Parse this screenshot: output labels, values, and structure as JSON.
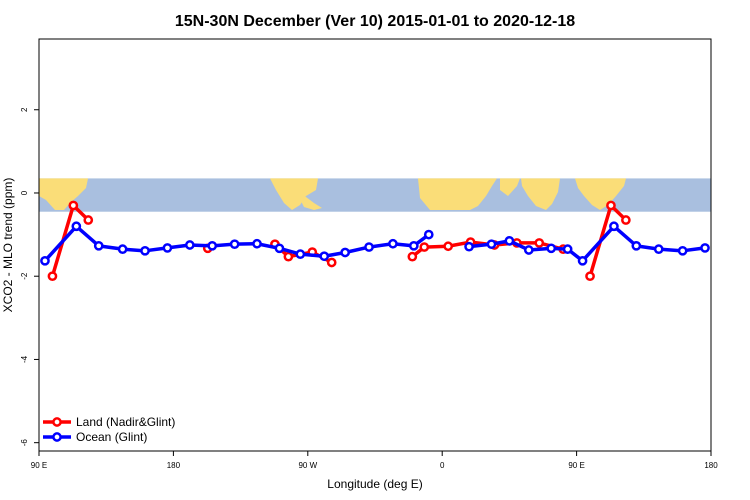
{
  "chart_data": {
    "type": "line",
    "title": "15N-30N December (Ver 10)   2015-01-01 to 2020-12-18",
    "xlabel": "Longitude (deg E)",
    "ylabel": "XCO2 - MLO trend (ppm)",
    "xlim": [
      90,
      540
    ],
    "ylim": [
      -6.2,
      3.7
    ],
    "x_ticks": [
      {
        "value": 90,
        "label": "90 E"
      },
      {
        "value": 180,
        "label": "180"
      },
      {
        "value": 270,
        "label": "90 W"
      },
      {
        "value": 360,
        "label": "0"
      },
      {
        "value": 450,
        "label": "90 E"
      },
      {
        "value": 540,
        "label": "180"
      }
    ],
    "y_ticks": [
      {
        "value": 2,
        "label": "2"
      },
      {
        "value": 0,
        "label": "0"
      },
      {
        "value": -2,
        "label": "-2"
      },
      {
        "value": -4,
        "label": "-4"
      },
      {
        "value": -6,
        "label": "-6"
      }
    ],
    "map_band": {
      "ymin": -0.45,
      "ymax": 0.35,
      "ocean_color": "#a9bfdf",
      "land_color": "#fadd78"
    },
    "legend_position": "bottom-left",
    "series": [
      {
        "name": "Land (Nadir&Glint)",
        "color": "#ff0000",
        "segments": [
          [
            [
              99,
              -2.0
            ],
            [
              113,
              -0.3
            ],
            [
              123,
              -0.65
            ]
          ],
          [
            [
              203,
              -1.33
            ]
          ],
          [
            [
              248,
              -1.23
            ],
            [
              257,
              -1.53
            ],
            [
              273,
              -1.42
            ],
            [
              286,
              -1.67
            ]
          ],
          [
            [
              340,
              -1.53
            ],
            [
              348,
              -1.3
            ],
            [
              364,
              -1.28
            ],
            [
              379,
              -1.18
            ],
            [
              395,
              -1.25
            ],
            [
              410,
              -1.2
            ],
            [
              425,
              -1.2
            ],
            [
              441,
              -1.35
            ]
          ],
          [
            [
              459,
              -2.0
            ],
            [
              473,
              -0.3
            ],
            [
              483,
              -0.65
            ]
          ]
        ]
      },
      {
        "name": "Ocean (Glint)",
        "color": "#0000ff",
        "segments": [
          [
            [
              94,
              -1.63
            ],
            [
              115,
              -0.8
            ],
            [
              130,
              -1.27
            ],
            [
              146,
              -1.35
            ],
            [
              161,
              -1.39
            ],
            [
              176,
              -1.32
            ],
            [
              191,
              -1.25
            ],
            [
              206,
              -1.27
            ],
            [
              221,
              -1.23
            ],
            [
              236,
              -1.22
            ],
            [
              251,
              -1.33
            ],
            [
              265,
              -1.47
            ],
            [
              281,
              -1.52
            ],
            [
              295,
              -1.43
            ],
            [
              311,
              -1.3
            ],
            [
              327,
              -1.22
            ],
            [
              341,
              -1.27
            ],
            [
              351,
              -1.0
            ]
          ],
          [
            [
              378,
              -1.29
            ],
            [
              393,
              -1.23
            ],
            [
              405,
              -1.15
            ],
            [
              418,
              -1.37
            ],
            [
              433,
              -1.33
            ],
            [
              444,
              -1.35
            ],
            [
              454,
              -1.63
            ],
            [
              475,
              -0.8
            ],
            [
              490,
              -1.27
            ],
            [
              505,
              -1.35
            ],
            [
              521,
              -1.39
            ],
            [
              536,
              -1.32
            ]
          ]
        ]
      }
    ]
  }
}
